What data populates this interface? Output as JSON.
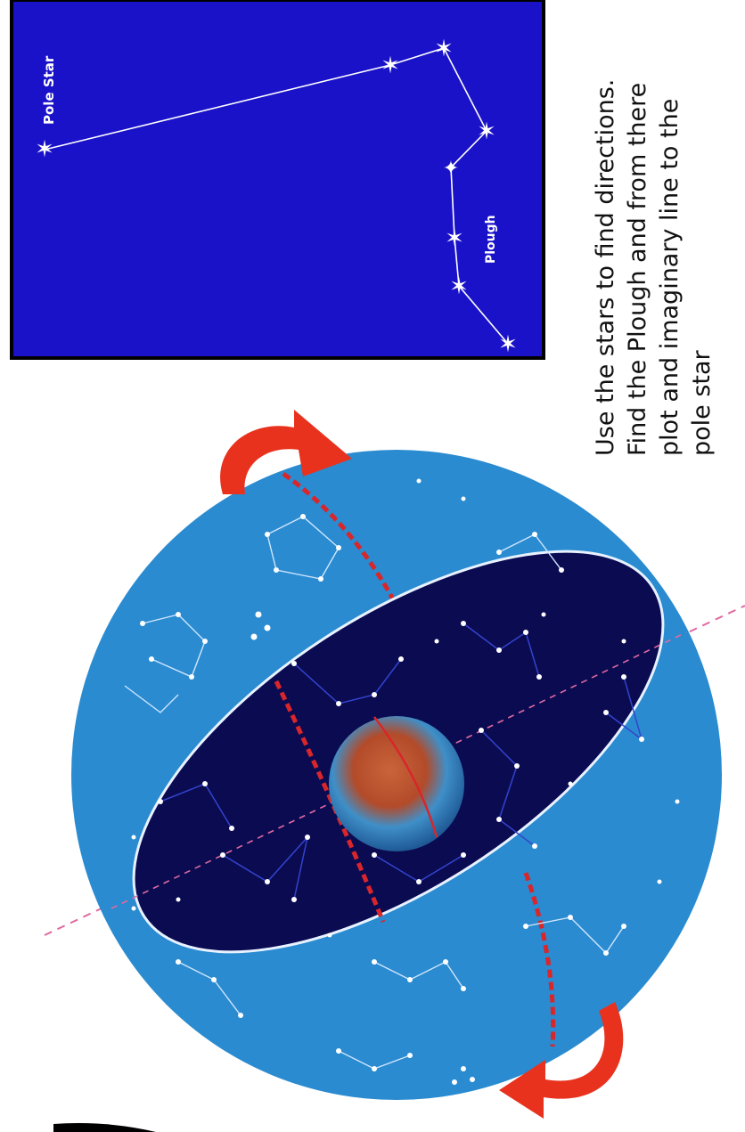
{
  "panel": {
    "pole_star_label": "Pole Star",
    "plough_label": "Plough",
    "background_color": "#1a12c8",
    "star_color": "#ffffff"
  },
  "caption": {
    "lines": [
      "Use the stars to find directions.",
      "Find the Plough and from there",
      "plot and imaginary line to the",
      "pole star"
    ]
  },
  "sphere": {
    "outer_color": "#2a8bd0",
    "inner_color": "#0b0b52",
    "axis_color": "#e06aa0",
    "arrow_color": "#e8321e",
    "meridian_color": "#d8262a"
  }
}
